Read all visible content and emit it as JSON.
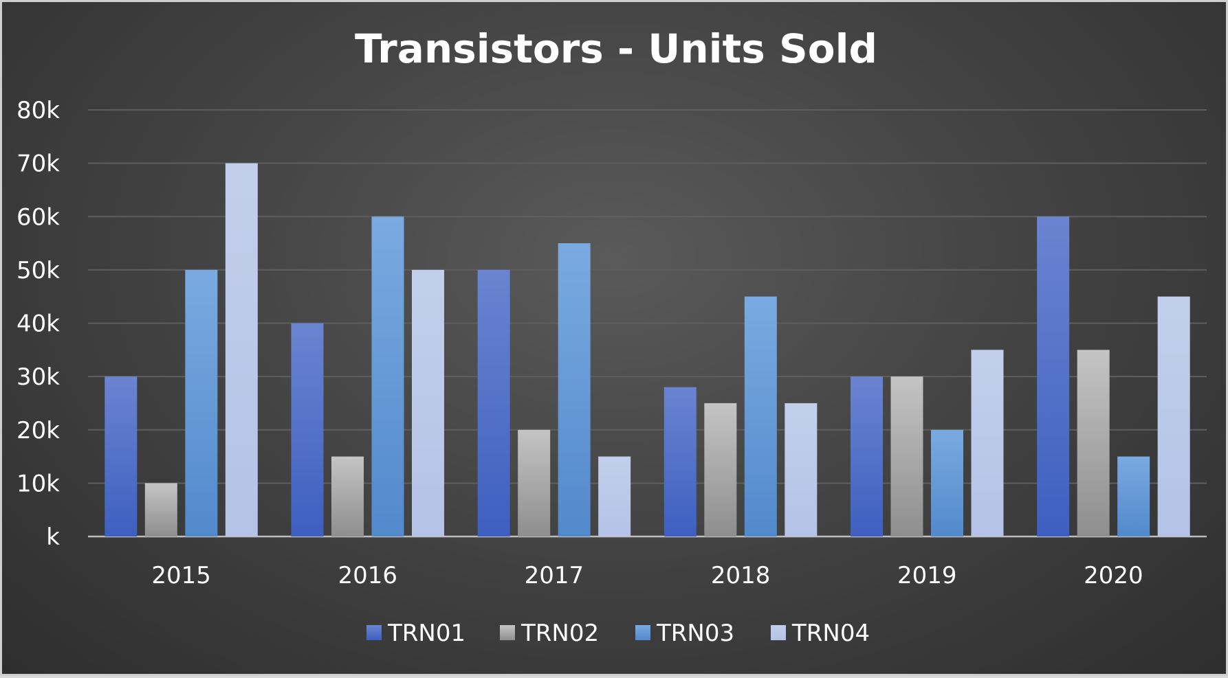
{
  "chart_data": {
    "type": "bar",
    "title": "Transistors - Units Sold",
    "xlabel": "",
    "ylabel": "",
    "categories": [
      "2015",
      "2016",
      "2017",
      "2018",
      "2019",
      "2020"
    ],
    "series": [
      {
        "name": "TRN01",
        "values": [
          30000,
          40000,
          50000,
          28000,
          30000,
          60000
        ],
        "color": "#4f6fc8"
      },
      {
        "name": "TRN02",
        "values": [
          10000,
          15000,
          20000,
          25000,
          30000,
          35000
        ],
        "color": "#a8a8a8"
      },
      {
        "name": "TRN03",
        "values": [
          50000,
          60000,
          55000,
          45000,
          20000,
          15000
        ],
        "color": "#6c9fd8"
      },
      {
        "name": "TRN04",
        "values": [
          70000,
          50000,
          15000,
          25000,
          35000,
          45000
        ],
        "color": "#bccae8"
      }
    ],
    "ylim": [
      0,
      80000
    ],
    "y_ticks": [
      0,
      10000,
      20000,
      30000,
      40000,
      50000,
      60000,
      70000,
      80000
    ],
    "y_tick_labels": [
      "k",
      "10k",
      "20k",
      "30k",
      "40k",
      "50k",
      "60k",
      "70k",
      "80k"
    ],
    "grid": true,
    "legend_position": "bottom"
  }
}
